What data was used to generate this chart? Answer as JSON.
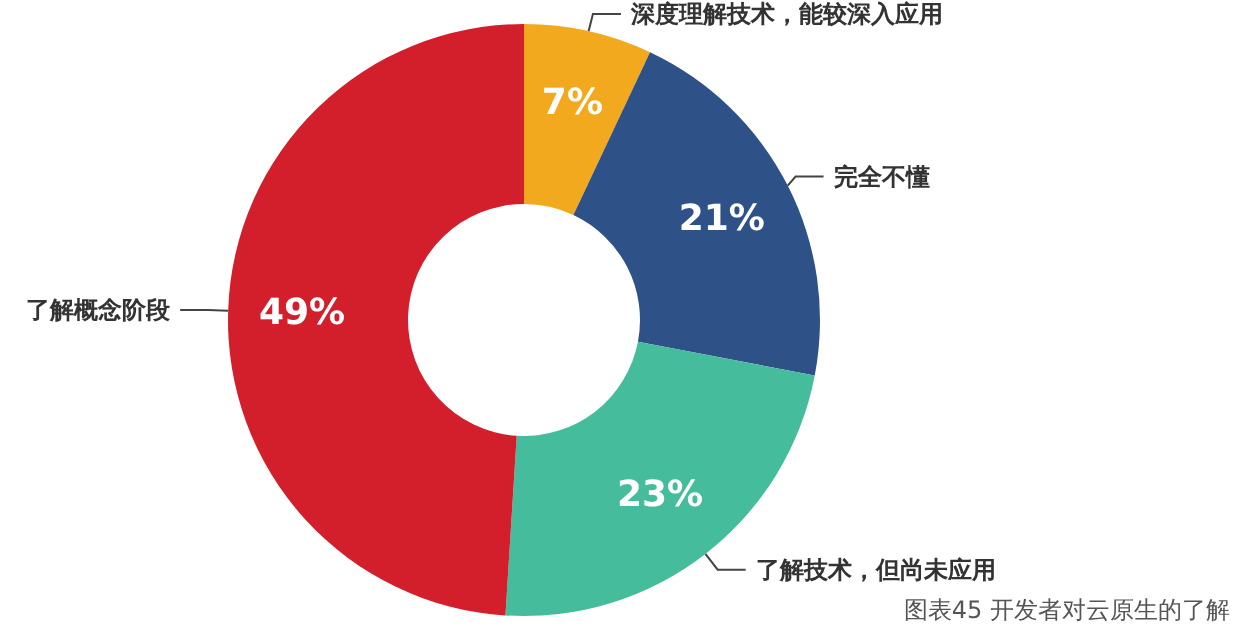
{
  "chart_data": {
    "type": "donut",
    "categories": [
      "深度理解技术，能较深入应用",
      "完全不懂",
      "了解技术，但尚未应用",
      "了解概念阶段"
    ],
    "values": [
      7,
      21,
      23,
      49
    ],
    "colors": [
      "#f2a91e",
      "#2e5288",
      "#45bd9c",
      "#d21f2b"
    ],
    "value_labels": [
      "7%",
      "21%",
      "23%",
      "49%"
    ],
    "annotations": [
      "图表45 开发者对云原生的了解"
    ],
    "legend": false
  }
}
